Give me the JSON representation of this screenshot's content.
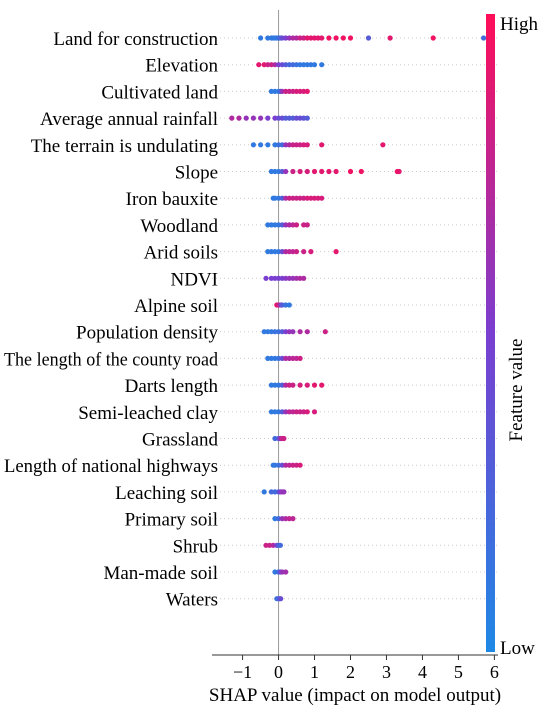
{
  "chart_data": {
    "type": "scatter",
    "subtype": "shap-beeswarm",
    "title": "",
    "xlabel": "SHAP value (impact on model output)",
    "xlim": [
      -1.85,
      6.1
    ],
    "xticks": [
      -1,
      0,
      1,
      2,
      3,
      4,
      5,
      6
    ],
    "grid": false,
    "colorbar": {
      "label": "Feature value",
      "high": "High",
      "low": "Low",
      "color_low": "#1e88e5",
      "color_high": "#ff0d57"
    },
    "features": [
      {
        "label": "Land for construction",
        "points": [
          [
            -0.5,
            0.1
          ],
          [
            -0.3,
            0.1
          ],
          [
            -0.2,
            0.1
          ],
          [
            -0.15,
            0.1
          ],
          [
            -0.1,
            0.1
          ],
          [
            -0.05,
            0.1
          ],
          [
            0,
            0.1
          ],
          [
            0.02,
            0.2
          ],
          [
            0.05,
            0.2
          ],
          [
            0.1,
            0.4
          ],
          [
            0.2,
            0.5
          ],
          [
            0.3,
            0.6
          ],
          [
            0.4,
            0.7
          ],
          [
            0.5,
            0.7
          ],
          [
            0.6,
            0.8
          ],
          [
            0.7,
            0.8
          ],
          [
            0.8,
            0.9
          ],
          [
            0.9,
            0.9
          ],
          [
            1.0,
            0.9
          ],
          [
            1.1,
            0.9
          ],
          [
            1.2,
            0.9
          ],
          [
            1.4,
            0.95
          ],
          [
            1.6,
            0.95
          ],
          [
            1.8,
            0.95
          ],
          [
            2.0,
            0.95
          ],
          [
            2.5,
            0.3
          ],
          [
            3.1,
            0.9
          ],
          [
            4.3,
            0.95
          ],
          [
            5.7,
            0.2
          ]
        ]
      },
      {
        "label": "Elevation",
        "points": [
          [
            -0.55,
            0.9
          ],
          [
            -0.4,
            0.9
          ],
          [
            -0.3,
            0.8
          ],
          [
            -0.2,
            0.8
          ],
          [
            -0.1,
            0.7
          ],
          [
            0,
            0.5
          ],
          [
            0.1,
            0.4
          ],
          [
            0.2,
            0.3
          ],
          [
            0.3,
            0.2
          ],
          [
            0.4,
            0.2
          ],
          [
            0.5,
            0.15
          ],
          [
            0.6,
            0.1
          ],
          [
            0.7,
            0.1
          ],
          [
            0.8,
            0.1
          ],
          [
            0.9,
            0.1
          ],
          [
            1.0,
            0.1
          ],
          [
            1.2,
            0.1
          ]
        ]
      },
      {
        "label": "Cultivated land",
        "points": [
          [
            -0.2,
            0.1
          ],
          [
            -0.1,
            0.1
          ],
          [
            0,
            0.1
          ],
          [
            0.05,
            0.2
          ],
          [
            0.1,
            0.6
          ],
          [
            0.2,
            0.8
          ],
          [
            0.3,
            0.8
          ],
          [
            0.4,
            0.8
          ],
          [
            0.5,
            0.85
          ],
          [
            0.6,
            0.85
          ],
          [
            0.7,
            0.85
          ],
          [
            0.8,
            0.9
          ]
        ]
      },
      {
        "label": "Average annual rainfall",
        "points": [
          [
            -1.3,
            0.7
          ],
          [
            -1.1,
            0.7
          ],
          [
            -0.9,
            0.6
          ],
          [
            -0.7,
            0.6
          ],
          [
            -0.5,
            0.6
          ],
          [
            -0.3,
            0.5
          ],
          [
            -0.1,
            0.5
          ],
          [
            0,
            0.4
          ],
          [
            0.1,
            0.4
          ],
          [
            0.2,
            0.3
          ],
          [
            0.3,
            0.3
          ],
          [
            0.4,
            0.3
          ],
          [
            0.5,
            0.4
          ],
          [
            0.6,
            0.4
          ],
          [
            0.7,
            0.35
          ],
          [
            0.8,
            0.3
          ]
        ]
      },
      {
        "label": "The terrain is undulating",
        "points": [
          [
            -0.7,
            0.1
          ],
          [
            -0.5,
            0.1
          ],
          [
            -0.3,
            0.1
          ],
          [
            -0.1,
            0.1
          ],
          [
            0,
            0.15
          ],
          [
            0.1,
            0.2
          ],
          [
            0.2,
            0.6
          ],
          [
            0.3,
            0.7
          ],
          [
            0.4,
            0.8
          ],
          [
            0.5,
            0.8
          ],
          [
            0.6,
            0.8
          ],
          [
            0.7,
            0.85
          ],
          [
            0.8,
            0.85
          ],
          [
            1.2,
            0.9
          ],
          [
            2.9,
            0.9
          ]
        ]
      },
      {
        "label": "Slope",
        "points": [
          [
            -0.2,
            0.1
          ],
          [
            -0.1,
            0.1
          ],
          [
            0,
            0.1
          ],
          [
            0.1,
            0.3
          ],
          [
            0.2,
            0.6
          ],
          [
            0.4,
            0.8
          ],
          [
            0.6,
            0.85
          ],
          [
            0.8,
            0.85
          ],
          [
            1.0,
            0.9
          ],
          [
            1.2,
            0.9
          ],
          [
            1.4,
            0.9
          ],
          [
            1.6,
            0.9
          ],
          [
            2.0,
            0.95
          ],
          [
            2.3,
            0.95
          ],
          [
            3.3,
            0.95
          ],
          [
            3.35,
            0.9
          ]
        ]
      },
      {
        "label": "Iron bauxite",
        "points": [
          [
            -0.15,
            0.1
          ],
          [
            -0.1,
            0.1
          ],
          [
            0,
            0.1
          ],
          [
            0.1,
            0.3
          ],
          [
            0.2,
            0.7
          ],
          [
            0.3,
            0.8
          ],
          [
            0.4,
            0.8
          ],
          [
            0.5,
            0.8
          ],
          [
            0.6,
            0.8
          ],
          [
            0.7,
            0.8
          ],
          [
            0.8,
            0.85
          ],
          [
            0.9,
            0.85
          ],
          [
            1.0,
            0.85
          ],
          [
            1.1,
            0.85
          ],
          [
            1.2,
            0.85
          ]
        ]
      },
      {
        "label": "Woodland",
        "points": [
          [
            -0.3,
            0.1
          ],
          [
            -0.2,
            0.1
          ],
          [
            -0.1,
            0.1
          ],
          [
            0,
            0.1
          ],
          [
            0.1,
            0.3
          ],
          [
            0.2,
            0.6
          ],
          [
            0.3,
            0.7
          ],
          [
            0.4,
            0.75
          ],
          [
            0.5,
            0.8
          ],
          [
            0.7,
            0.8
          ],
          [
            0.8,
            0.8
          ]
        ]
      },
      {
        "label": "Arid soils",
        "points": [
          [
            -0.3,
            0.1
          ],
          [
            -0.2,
            0.1
          ],
          [
            -0.1,
            0.1
          ],
          [
            0,
            0.1
          ],
          [
            0.1,
            0.4
          ],
          [
            0.2,
            0.7
          ],
          [
            0.3,
            0.75
          ],
          [
            0.4,
            0.75
          ],
          [
            0.5,
            0.8
          ],
          [
            0.7,
            0.8
          ],
          [
            0.9,
            0.85
          ],
          [
            1.6,
            0.9
          ]
        ]
      },
      {
        "label": "NDVI",
        "points": [
          [
            -0.35,
            0.5
          ],
          [
            -0.2,
            0.5
          ],
          [
            -0.1,
            0.5
          ],
          [
            0,
            0.5
          ],
          [
            0.1,
            0.5
          ],
          [
            0.2,
            0.55
          ],
          [
            0.3,
            0.6
          ],
          [
            0.4,
            0.6
          ],
          [
            0.5,
            0.65
          ],
          [
            0.6,
            0.7
          ],
          [
            0.7,
            0.7
          ]
        ]
      },
      {
        "label": "Alpine soil",
        "points": [
          [
            -0.05,
            0.9
          ],
          [
            0,
            0.85
          ],
          [
            0.05,
            0.6
          ],
          [
            0.1,
            0.3
          ],
          [
            0.2,
            0.15
          ],
          [
            0.3,
            0.1
          ]
        ]
      },
      {
        "label": "Population density",
        "points": [
          [
            -0.4,
            0.1
          ],
          [
            -0.3,
            0.1
          ],
          [
            -0.2,
            0.1
          ],
          [
            -0.1,
            0.15
          ],
          [
            0,
            0.15
          ],
          [
            0.1,
            0.3
          ],
          [
            0.2,
            0.5
          ],
          [
            0.3,
            0.6
          ],
          [
            0.4,
            0.6
          ],
          [
            0.6,
            0.7
          ],
          [
            0.8,
            0.7
          ],
          [
            1.3,
            0.8
          ]
        ]
      },
      {
        "label": "The length of the county road",
        "points": [
          [
            -0.3,
            0.1
          ],
          [
            -0.2,
            0.1
          ],
          [
            -0.1,
            0.1
          ],
          [
            0,
            0.15
          ],
          [
            0.1,
            0.4
          ],
          [
            0.2,
            0.7
          ],
          [
            0.3,
            0.7
          ],
          [
            0.4,
            0.75
          ],
          [
            0.5,
            0.75
          ],
          [
            0.6,
            0.8
          ]
        ]
      },
      {
        "label": "Darts length",
        "points": [
          [
            -0.2,
            0.1
          ],
          [
            -0.1,
            0.1
          ],
          [
            0,
            0.1
          ],
          [
            0.1,
            0.3
          ],
          [
            0.2,
            0.7
          ],
          [
            0.3,
            0.8
          ],
          [
            0.4,
            0.8
          ],
          [
            0.6,
            0.85
          ],
          [
            0.8,
            0.85
          ],
          [
            1.0,
            0.9
          ],
          [
            1.2,
            0.9
          ]
        ]
      },
      {
        "label": "Semi-leached clay",
        "points": [
          [
            -0.2,
            0.1
          ],
          [
            -0.1,
            0.1
          ],
          [
            0,
            0.1
          ],
          [
            0.1,
            0.3
          ],
          [
            0.2,
            0.6
          ],
          [
            0.3,
            0.75
          ],
          [
            0.4,
            0.75
          ],
          [
            0.5,
            0.8
          ],
          [
            0.6,
            0.8
          ],
          [
            0.7,
            0.8
          ],
          [
            0.8,
            0.85
          ],
          [
            1.0,
            0.85
          ]
        ]
      },
      {
        "label": "Grassland",
        "points": [
          [
            -0.1,
            0.2
          ],
          [
            0,
            0.3
          ],
          [
            0.05,
            0.6
          ],
          [
            0.1,
            0.8
          ],
          [
            0.15,
            0.8
          ]
        ]
      },
      {
        "label": "Length of national highways",
        "points": [
          [
            -0.15,
            0.1
          ],
          [
            -0.1,
            0.1
          ],
          [
            0,
            0.15
          ],
          [
            0.1,
            0.4
          ],
          [
            0.2,
            0.7
          ],
          [
            0.3,
            0.75
          ],
          [
            0.4,
            0.8
          ],
          [
            0.5,
            0.8
          ],
          [
            0.6,
            0.85
          ]
        ]
      },
      {
        "label": "Leaching soil",
        "points": [
          [
            -0.4,
            0.1
          ],
          [
            -0.2,
            0.2
          ],
          [
            -0.1,
            0.2
          ],
          [
            0,
            0.3
          ],
          [
            0.05,
            0.5
          ],
          [
            0.1,
            0.6
          ],
          [
            0.15,
            0.6
          ]
        ]
      },
      {
        "label": "Primary soil",
        "points": [
          [
            -0.1,
            0.1
          ],
          [
            0,
            0.2
          ],
          [
            0.1,
            0.6
          ],
          [
            0.2,
            0.7
          ],
          [
            0.3,
            0.75
          ],
          [
            0.4,
            0.75
          ]
        ]
      },
      {
        "label": "Shrub",
        "points": [
          [
            -0.35,
            0.8
          ],
          [
            -0.25,
            0.8
          ],
          [
            -0.15,
            0.7
          ],
          [
            -0.05,
            0.5
          ],
          [
            0,
            0.3
          ],
          [
            0.05,
            0.2
          ]
        ]
      },
      {
        "label": "Man-made soil",
        "points": [
          [
            -0.1,
            0.1
          ],
          [
            0,
            0.2
          ],
          [
            0.05,
            0.4
          ],
          [
            0.1,
            0.6
          ],
          [
            0.2,
            0.65
          ]
        ]
      },
      {
        "label": "Waters",
        "points": [
          [
            -0.05,
            0.15
          ],
          [
            0,
            0.2
          ],
          [
            0.03,
            0.3
          ],
          [
            0.06,
            0.4
          ]
        ]
      }
    ]
  }
}
